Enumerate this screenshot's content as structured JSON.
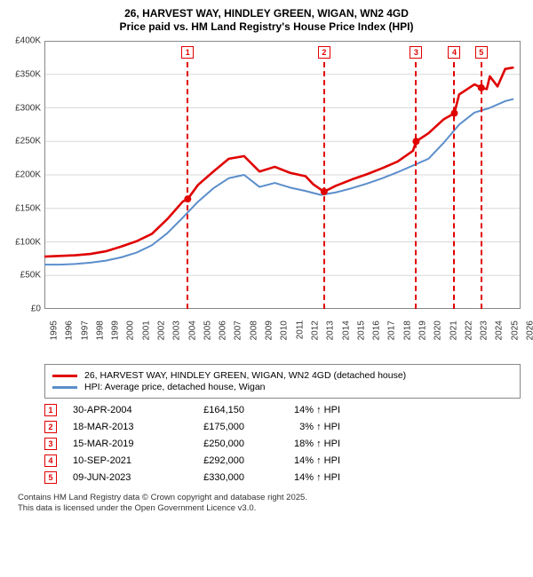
{
  "title_line1": "26, HARVEST WAY, HINDLEY GREEN, WIGAN, WN2 4GD",
  "title_line2": "Price paid vs. HM Land Registry's House Price Index (HPI)",
  "chart": {
    "type": "line",
    "background_color": "#ffffff",
    "grid_color": "#d9d9d9",
    "y": {
      "min": 0,
      "max": 400,
      "tick_step": 50,
      "tick_prefix": "£",
      "tick_suffix": "K",
      "fontsize": 10
    },
    "x": {
      "min": 1995,
      "max": 2026,
      "tick_step": 1,
      "fontsize": 10
    },
    "series": [
      {
        "id": "prop",
        "label": "26, HARVEST WAY, HINDLEY GREEN, WIGAN, WN2 4GD (detached house)",
        "color": "#e00000",
        "width": 2.6,
        "data": [
          [
            1995,
            78
          ],
          [
            1996,
            79
          ],
          [
            1997,
            80
          ],
          [
            1998,
            82
          ],
          [
            1999,
            86
          ],
          [
            2000,
            93
          ],
          [
            2001,
            101
          ],
          [
            2002,
            112
          ],
          [
            2003,
            134
          ],
          [
            2004,
            160
          ],
          [
            2004.33,
            164
          ],
          [
            2005,
            185
          ],
          [
            2006,
            205
          ],
          [
            2007,
            224
          ],
          [
            2008,
            228
          ],
          [
            2009,
            205
          ],
          [
            2010,
            212
          ],
          [
            2011,
            203
          ],
          [
            2012,
            198
          ],
          [
            2012.5,
            186
          ],
          [
            2013,
            178
          ],
          [
            2013.21,
            175
          ],
          [
            2014,
            184
          ],
          [
            2015,
            193
          ],
          [
            2016,
            201
          ],
          [
            2017,
            210
          ],
          [
            2018,
            220
          ],
          [
            2019,
            236
          ],
          [
            2019.2,
            250
          ],
          [
            2020,
            262
          ],
          [
            2021,
            283
          ],
          [
            2021.69,
            292
          ],
          [
            2022,
            320
          ],
          [
            2023,
            335
          ],
          [
            2023.44,
            330
          ],
          [
            2023.8,
            328
          ],
          [
            2024,
            347
          ],
          [
            2024.5,
            332
          ],
          [
            2025,
            358
          ],
          [
            2025.5,
            360
          ]
        ],
        "markers": [
          {
            "n": 1,
            "x": 2004.33,
            "y": 164
          },
          {
            "n": 2,
            "x": 2013.21,
            "y": 175
          },
          {
            "n": 3,
            "x": 2019.2,
            "y": 250
          },
          {
            "n": 4,
            "x": 2021.69,
            "y": 292
          },
          {
            "n": 5,
            "x": 2023.44,
            "y": 330
          }
        ]
      },
      {
        "id": "hpi",
        "label": "HPI: Average price, detached house, Wigan",
        "color": "#5b8ecb",
        "width": 2,
        "data": [
          [
            1995,
            66
          ],
          [
            1996,
            66
          ],
          [
            1997,
            67
          ],
          [
            1998,
            69
          ],
          [
            1999,
            72
          ],
          [
            2000,
            77
          ],
          [
            2001,
            84
          ],
          [
            2002,
            95
          ],
          [
            2003,
            113
          ],
          [
            2004,
            136
          ],
          [
            2005,
            160
          ],
          [
            2006,
            180
          ],
          [
            2007,
            195
          ],
          [
            2008,
            200
          ],
          [
            2009,
            182
          ],
          [
            2010,
            188
          ],
          [
            2011,
            181
          ],
          [
            2012,
            176
          ],
          [
            2013,
            170
          ],
          [
            2014,
            174
          ],
          [
            2015,
            180
          ],
          [
            2016,
            187
          ],
          [
            2017,
            195
          ],
          [
            2018,
            204
          ],
          [
            2019,
            214
          ],
          [
            2020,
            224
          ],
          [
            2021,
            248
          ],
          [
            2022,
            275
          ],
          [
            2023,
            293
          ],
          [
            2024,
            300
          ],
          [
            2025,
            310
          ],
          [
            2025.5,
            313
          ]
        ]
      }
    ],
    "marker_style": {
      "flag_border": "#e00000",
      "flag_fill": "#ffffff",
      "dot_fill": "#e00000",
      "dot_radius": 4
    }
  },
  "legend": {
    "items": [
      {
        "color": "#e00000",
        "label": "26, HARVEST WAY, HINDLEY GREEN, WIGAN, WN2 4GD (detached house)"
      },
      {
        "color": "#5b8ecb",
        "label": "HPI: Average price, detached house, Wigan"
      }
    ]
  },
  "events": [
    {
      "n": 1,
      "date": "30-APR-2004",
      "price": "£164,150",
      "pct": "14% ↑ HPI"
    },
    {
      "n": 2,
      "date": "18-MAR-2013",
      "price": "£175,000",
      "pct": "3% ↑ HPI"
    },
    {
      "n": 3,
      "date": "15-MAR-2019",
      "price": "£250,000",
      "pct": "18% ↑ HPI"
    },
    {
      "n": 4,
      "date": "10-SEP-2021",
      "price": "£292,000",
      "pct": "14% ↑ HPI"
    },
    {
      "n": 5,
      "date": "09-JUN-2023",
      "price": "£330,000",
      "pct": "14% ↑ HPI"
    }
  ],
  "footer_line1": "Contains HM Land Registry data © Crown copyright and database right 2025.",
  "footer_line2": "This data is licensed under the Open Government Licence v3.0."
}
